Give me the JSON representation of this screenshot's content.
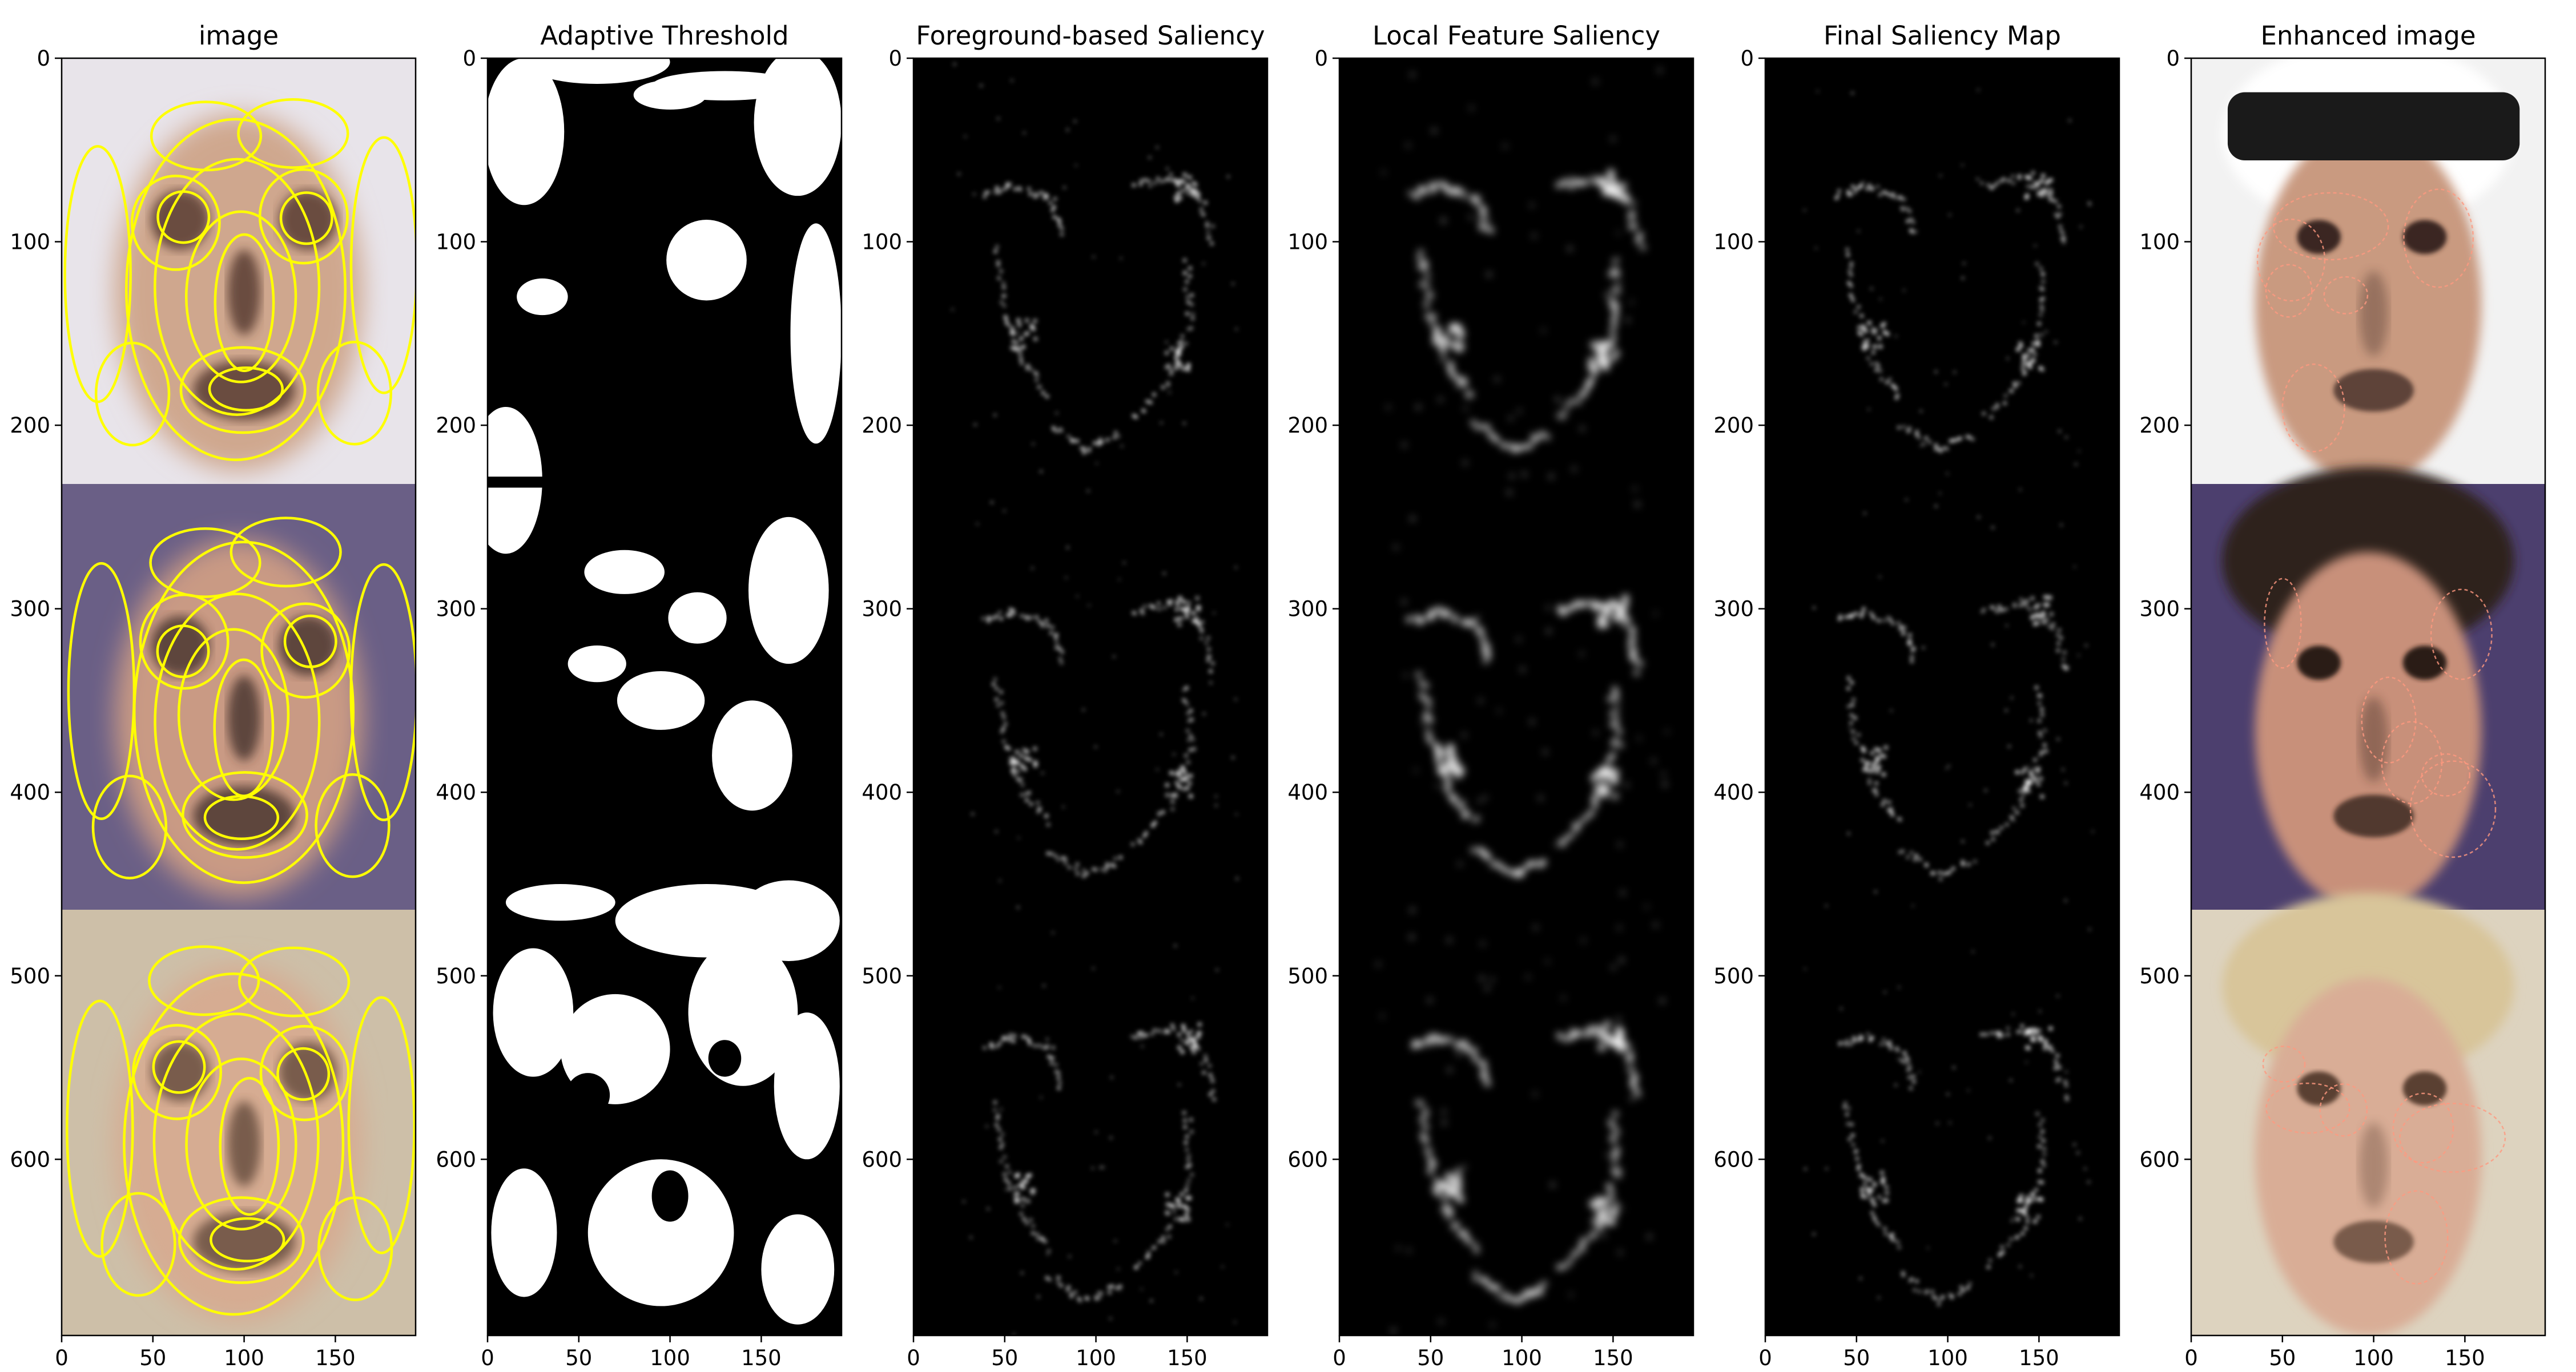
{
  "figure": {
    "axes": {
      "x_ticks": [
        "0",
        "50",
        "100",
        "150"
      ],
      "y_ticks": [
        "0",
        "100",
        "200",
        "300",
        "400",
        "500",
        "600"
      ]
    },
    "panels": [
      {
        "title": "image",
        "kind": "contour-face"
      },
      {
        "title": "Adaptive Threshold",
        "kind": "threshold"
      },
      {
        "title": "Foreground-based Saliency",
        "kind": "saliency-sharp"
      },
      {
        "title": "Local Feature Saliency",
        "kind": "saliency-blur"
      },
      {
        "title": "Final Saliency Map",
        "kind": "saliency-sharp"
      },
      {
        "title": "Enhanced image",
        "kind": "enhanced-face"
      }
    ],
    "colors": {
      "contour": "#ffff00",
      "enhanced_contour": "#ff9980",
      "saliency_bg": "#000000",
      "saliency_fg": "#ffffff"
    }
  }
}
